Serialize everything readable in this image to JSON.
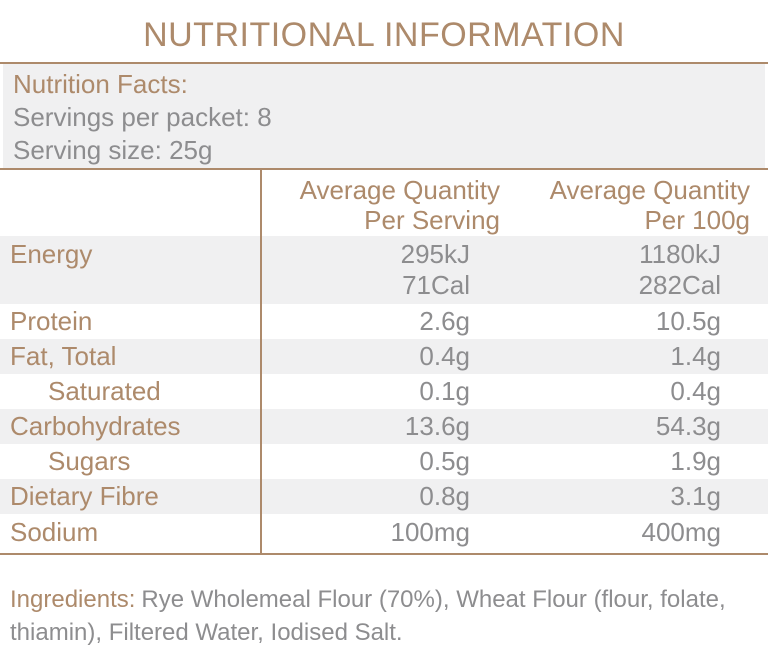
{
  "title": "NUTRITIONAL INFORMATION",
  "facts_panel": {
    "heading": "Nutrition Facts:",
    "servings_per_packet": "Servings per packet: 8",
    "serving_size": "Serving size: 25g"
  },
  "table": {
    "columns": [
      {
        "line1": "Average Quantity",
        "line2": "Per Serving"
      },
      {
        "line1": "Average Quantity",
        "line2": "Per 100g"
      }
    ],
    "rows": [
      {
        "label": "Energy",
        "per_serving": [
          "295kJ",
          "71Cal"
        ],
        "per_100g": [
          "1180kJ",
          "282Cal"
        ],
        "indent": false,
        "shaded": true
      },
      {
        "label": "Protein",
        "per_serving": [
          "2.6g"
        ],
        "per_100g": [
          "10.5g"
        ],
        "indent": false,
        "shaded": false
      },
      {
        "label": "Fat, Total",
        "per_serving": [
          "0.4g"
        ],
        "per_100g": [
          "1.4g"
        ],
        "indent": false,
        "shaded": true
      },
      {
        "label": "Saturated",
        "per_serving": [
          "0.1g"
        ],
        "per_100g": [
          "0.4g"
        ],
        "indent": true,
        "shaded": false
      },
      {
        "label": "Carbohydrates",
        "per_serving": [
          "13.6g"
        ],
        "per_100g": [
          "54.3g"
        ],
        "indent": false,
        "shaded": true
      },
      {
        "label": "Sugars",
        "per_serving": [
          "0.5g"
        ],
        "per_100g": [
          "1.9g"
        ],
        "indent": true,
        "shaded": false
      },
      {
        "label": "Dietary Fibre",
        "per_serving": [
          "0.8g"
        ],
        "per_100g": [
          "3.1g"
        ],
        "indent": false,
        "shaded": true
      },
      {
        "label": "Sodium",
        "per_serving": [
          "100mg"
        ],
        "per_100g": [
          "400mg"
        ],
        "indent": false,
        "shaded": false
      }
    ]
  },
  "ingredients": {
    "label": "Ingredients:",
    "text": "Rye Wholemeal Flour (70%), Wheat Flour (flour, folate, thiamin), Filtered Water, Iodised Salt."
  },
  "colors": {
    "accent": "#ad8a6b",
    "text_gray": "#8d8d8f",
    "row_shade": "#f0f0f1"
  }
}
